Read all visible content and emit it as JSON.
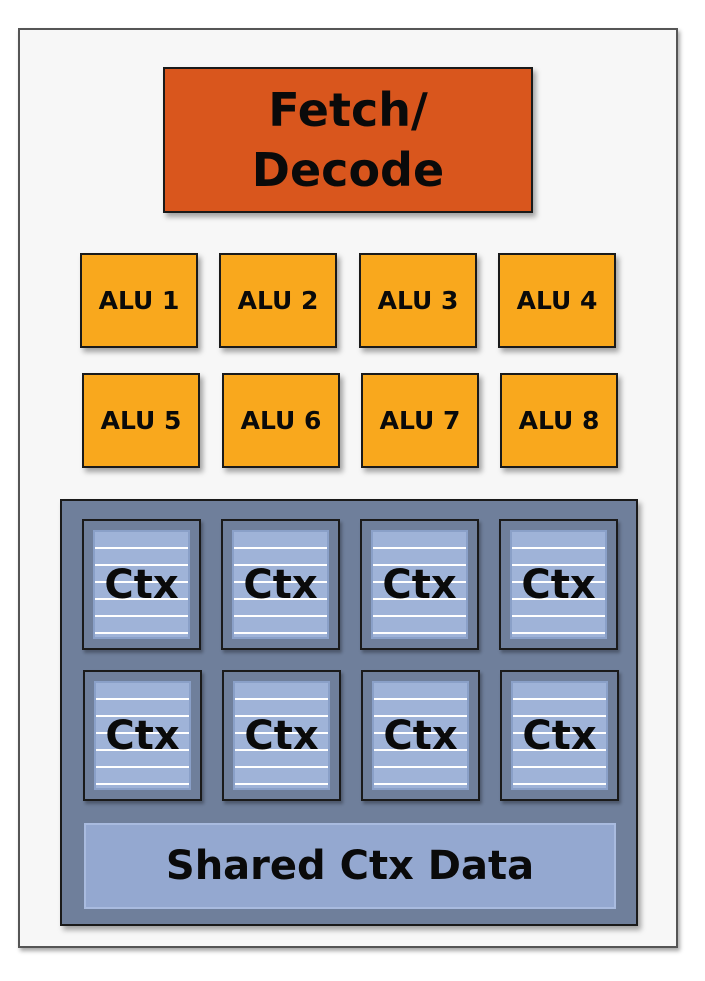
{
  "fetch_decode": {
    "line1": "Fetch/",
    "line2": "Decode"
  },
  "alus": [
    "ALU 1",
    "ALU 2",
    "ALU 3",
    "ALU 4",
    "ALU 5",
    "ALU 6",
    "ALU 7",
    "ALU 8"
  ],
  "contexts": [
    "Ctx",
    "Ctx",
    "Ctx",
    "Ctx",
    "Ctx",
    "Ctx",
    "Ctx",
    "Ctx"
  ],
  "shared_ctx": "Shared Ctx Data",
  "colors": {
    "fetch_decode": "#d9561d",
    "alu": "#f9a81d",
    "context_region": "#6f7f9b",
    "context": "#9fb3d8",
    "shared_ctx": "#94a8d0"
  }
}
